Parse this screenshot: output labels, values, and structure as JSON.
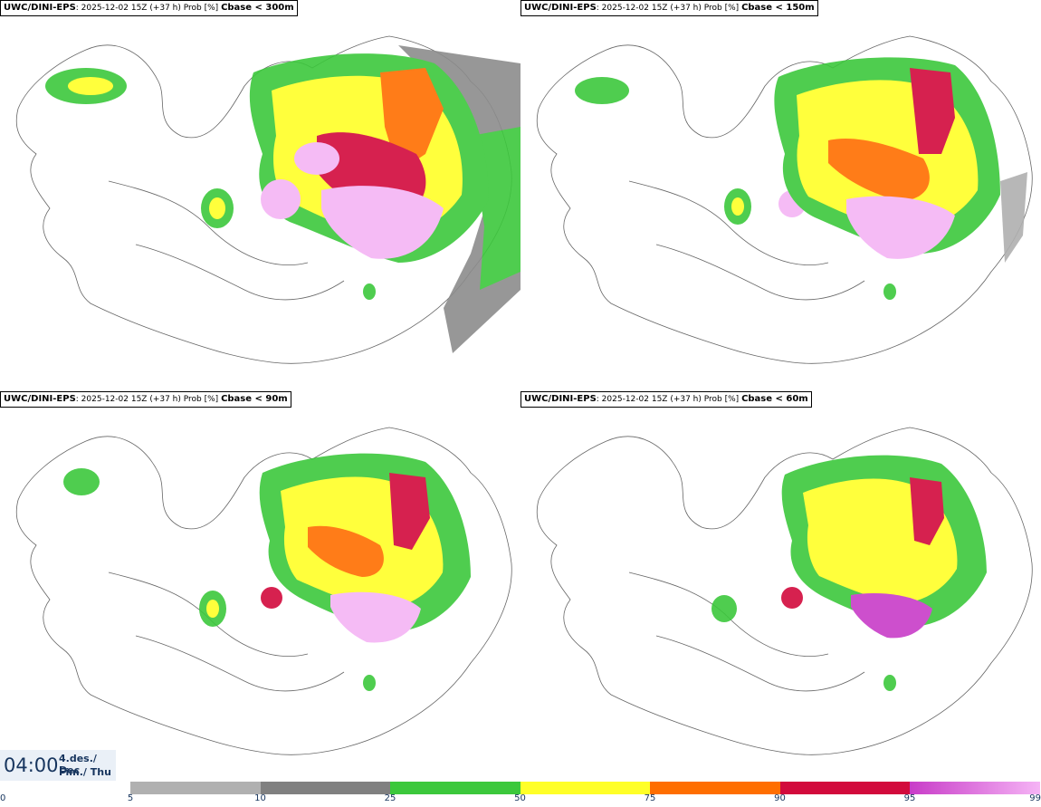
{
  "panels": [
    {
      "model": "UWC/DINI-EPS",
      "run": "2025-12-02 15Z (+37 h) Prob [%]",
      "param": "Cbase < 300m"
    },
    {
      "model": "UWC/DINI-EPS",
      "run": "2025-12-02 15Z (+37 h) Prob [%]",
      "param": "Cbase < 150m"
    },
    {
      "model": "UWC/DINI-EPS",
      "run": "2025-12-02 15Z (+37 h) Prob [%]",
      "param": "Cbase < 90m"
    },
    {
      "model": "UWC/DINI-EPS",
      "run": "2025-12-02 15Z (+37 h) Prob [%]",
      "param": "Cbase < 60m"
    }
  ],
  "valid_time": {
    "time": "04:00",
    "date_line1": "4.des./ Dec",
    "date_line2": "Fim./ Thu"
  },
  "legend": {
    "ticks": [
      "0",
      "5",
      "10",
      "25",
      "50",
      "75",
      "90",
      "95",
      "99"
    ],
    "colors": [
      "#ffffff",
      "#b0b0b0",
      "#808080",
      "#3cc83c",
      "#ffff28",
      "#ff6e00",
      "#d20a3c",
      "#c83cc8",
      "#f5b4f5"
    ]
  }
}
